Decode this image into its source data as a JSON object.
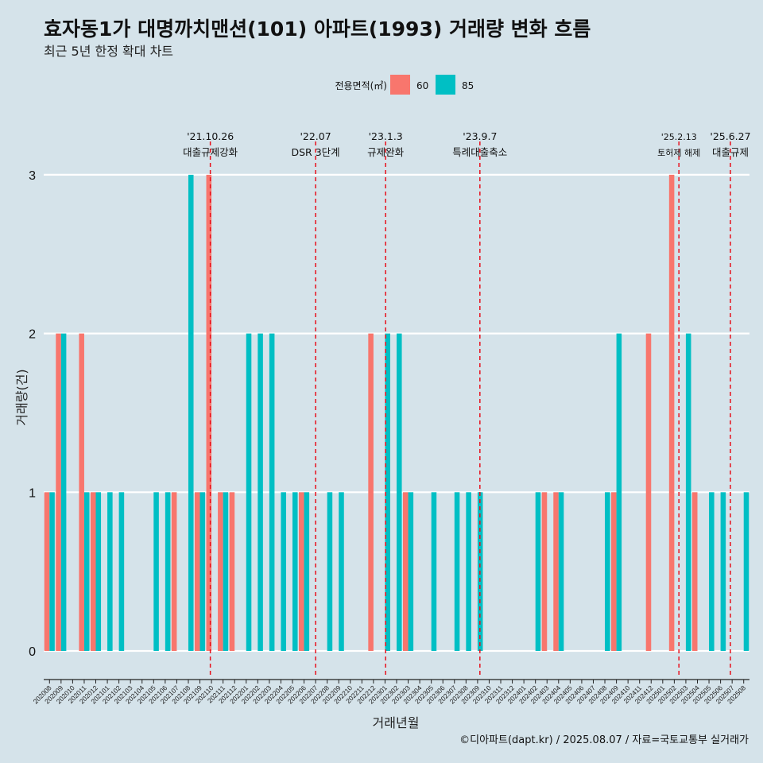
{
  "title": "효자동1가 대명까치맨션(101) 아파트(1993) 거래량 변화 흐름",
  "subtitle": "최근 5년 한정 확대 차트",
  "caption": "©디아파트(dapt.kr) / 2025.08.07 / 자료=국토교통부 실거래가",
  "chart_data": {
    "type": "bar",
    "xlabel": "거래년월",
    "ylabel": "거래량(건)",
    "ylim": [
      -0.12,
      3.35
    ],
    "yticks": [
      0,
      1,
      2,
      3
    ],
    "grid": true,
    "legend": {
      "title": "전용면적(㎡)",
      "position": "top"
    },
    "categories": [
      "202008",
      "202009",
      "202010",
      "202011",
      "202012",
      "202101",
      "202102",
      "202103",
      "202104",
      "202105",
      "202106",
      "202107",
      "202108",
      "202109",
      "202110",
      "202111",
      "202112",
      "202201",
      "202202",
      "202203",
      "202204",
      "202205",
      "202206",
      "202207",
      "202208",
      "202209",
      "202210",
      "202211",
      "202212",
      "202301",
      "202302",
      "202303",
      "202304",
      "202305",
      "202306",
      "202307",
      "202308",
      "202309",
      "202310",
      "202311",
      "202312",
      "202401",
      "202402",
      "202403",
      "202404",
      "202405",
      "202406",
      "202407",
      "202408",
      "202409",
      "202410",
      "202411",
      "202412",
      "202501",
      "202502",
      "202503",
      "202504",
      "202505",
      "202506",
      "202507",
      "202508"
    ],
    "series": [
      {
        "name": "60",
        "color": "#f8766d",
        "values": [
          1,
          2,
          0,
          2,
          1,
          0,
          0,
          0,
          0,
          0,
          0,
          1,
          0,
          1,
          3,
          1,
          1,
          0,
          0,
          0,
          0,
          0,
          1,
          0,
          0,
          0,
          0,
          0,
          2,
          0,
          0,
          1,
          0,
          0,
          0,
          0,
          0,
          0,
          0,
          0,
          0,
          0,
          0,
          1,
          1,
          0,
          0,
          0,
          0,
          1,
          0,
          0,
          2,
          0,
          3,
          0,
          1,
          0,
          0,
          0,
          0
        ]
      },
      {
        "name": "85",
        "color": "#00bfc4",
        "values": [
          1,
          2,
          0,
          1,
          1,
          1,
          1,
          0,
          0,
          1,
          1,
          0,
          3,
          1,
          0,
          1,
          0,
          2,
          2,
          2,
          1,
          1,
          1,
          0,
          1,
          1,
          0,
          0,
          0,
          2,
          2,
          1,
          0,
          1,
          0,
          1,
          1,
          1,
          0,
          0,
          0,
          0,
          1,
          0,
          1,
          0,
          0,
          0,
          1,
          2,
          0,
          0,
          0,
          0,
          0,
          2,
          0,
          1,
          1,
          0,
          1
        ]
      }
    ],
    "events": [
      {
        "date": "'21.10.26",
        "label": "대출규제강화",
        "idx": 13.9
      },
      {
        "date": "'22.07",
        "label": "DSR 3단계",
        "idx": 23
      },
      {
        "date": "'23.1.3",
        "label": "규제완화",
        "idx": 29.05
      },
      {
        "date": "'23.9.7",
        "label": "특례대출축소",
        "idx": 37.2
      },
      {
        "date": "'25.2.13",
        "label": "토허제 해제",
        "idx": 54.4,
        "small": true
      },
      {
        "date": "'25.6.27",
        "label": "대출규제",
        "idx": 58.85
      }
    ]
  }
}
